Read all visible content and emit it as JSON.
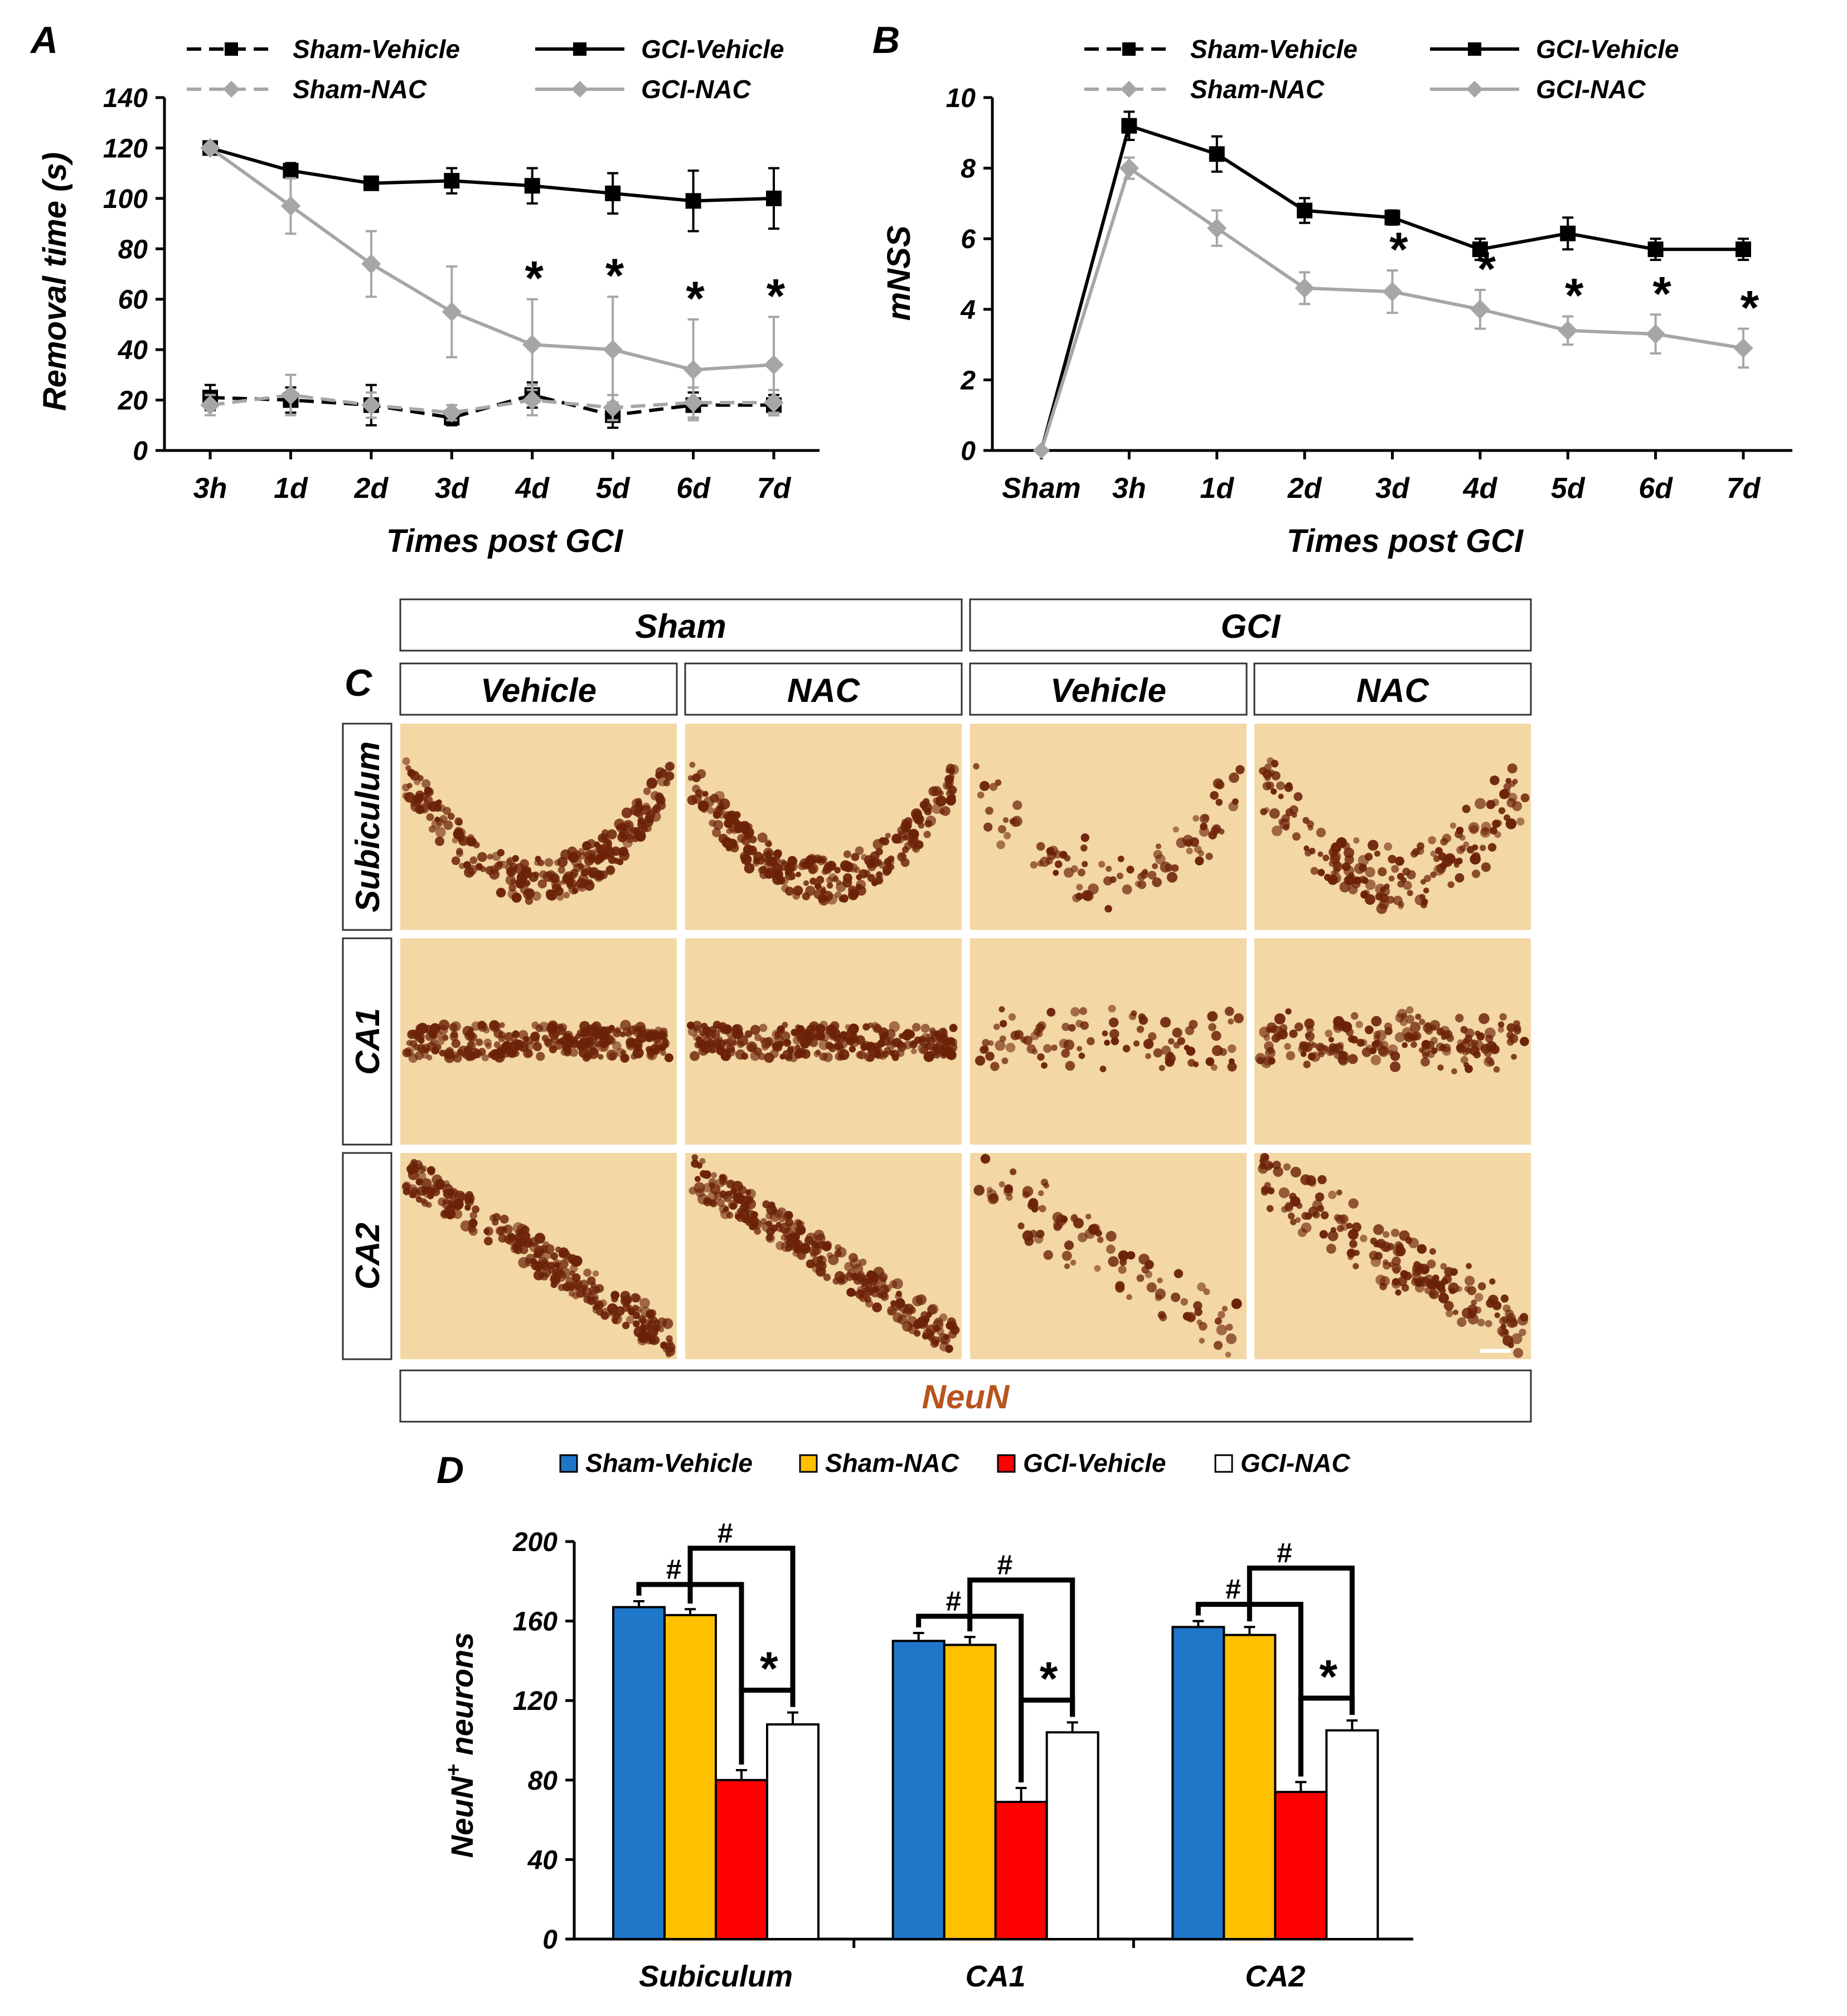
{
  "panel_labels": {
    "a": "A",
    "b": "B",
    "c": "C",
    "d": "D"
  },
  "chart_data": [
    {
      "panel": "A",
      "type": "line",
      "categories": [
        "3h",
        "1d",
        "2d",
        "3d",
        "4d",
        "5d",
        "6d",
        "7d"
      ],
      "ylabel": "Removal time (s)",
      "xlabel": "Times post GCI",
      "ylim": [
        0,
        140
      ],
      "yticks": [
        0,
        20,
        40,
        60,
        80,
        100,
        120,
        140
      ],
      "legend": "top",
      "series": [
        {
          "name": "Sham-Vehicle",
          "color": "#000000",
          "dashed": true,
          "marker": "square",
          "values": [
            21,
            20,
            18,
            13,
            22,
            14,
            18,
            18
          ],
          "errors": [
            5,
            5,
            8,
            3,
            5,
            5,
            5,
            4
          ]
        },
        {
          "name": "Sham-NAC",
          "color": "#a6a6a6",
          "dashed": true,
          "marker": "diamond",
          "values": [
            18,
            22,
            18,
            15,
            20,
            17,
            19,
            19
          ],
          "errors": [
            4,
            8,
            5,
            3,
            6,
            5,
            6,
            5
          ]
        },
        {
          "name": "GCI-Vehicle",
          "color": "#000000",
          "dashed": false,
          "marker": "square",
          "values": [
            120,
            111,
            106,
            107,
            105,
            102,
            99,
            100
          ],
          "errors": [
            0,
            3,
            2,
            5,
            7,
            8,
            12,
            12
          ]
        },
        {
          "name": "GCI-NAC",
          "color": "#a6a6a6",
          "dashed": false,
          "marker": "diamond",
          "values": [
            120,
            97,
            74,
            55,
            42,
            40,
            32,
            34
          ],
          "errors": [
            0,
            11,
            13,
            18,
            18,
            21,
            20,
            19
          ]
        }
      ],
      "significance": [
        {
          "category": "4d",
          "label": "*"
        },
        {
          "category": "5d",
          "label": "*"
        },
        {
          "category": "6d",
          "label": "*"
        },
        {
          "category": "7d",
          "label": "*"
        }
      ]
    },
    {
      "panel": "B",
      "type": "line",
      "categories": [
        "Sham",
        "3h",
        "1d",
        "2d",
        "3d",
        "4d",
        "5d",
        "6d",
        "7d"
      ],
      "ylabel": "mNSS",
      "xlabel": "Times post GCI",
      "ylim": [
        0,
        10
      ],
      "yticks": [
        0,
        2,
        4,
        6,
        8,
        10
      ],
      "legend": "top",
      "legend_entries": [
        {
          "name": "Sham-Vehicle",
          "color": "#000000",
          "dashed": true,
          "marker": "square"
        },
        {
          "name": "GCI-Vehicle",
          "color": "#000000",
          "dashed": false,
          "marker": "square"
        },
        {
          "name": "Sham-NAC",
          "color": "#a6a6a6",
          "dashed": true,
          "marker": "diamond"
        },
        {
          "name": "GCI-NAC",
          "color": "#a6a6a6",
          "dashed": false,
          "marker": "diamond"
        }
      ],
      "series": [
        {
          "name": "GCI-Vehicle",
          "color": "#000000",
          "dashed": false,
          "marker": "square",
          "values": [
            0,
            9.2,
            8.4,
            6.8,
            6.6,
            5.7,
            6.15,
            5.7,
            5.7
          ],
          "errors": [
            0,
            0.4,
            0.5,
            0.35,
            0.2,
            0.3,
            0.45,
            0.3,
            0.3
          ]
        },
        {
          "name": "GCI-NAC",
          "color": "#a6a6a6",
          "dashed": false,
          "marker": "diamond",
          "values": [
            0,
            8.0,
            6.3,
            4.6,
            4.5,
            4.0,
            3.4,
            3.3,
            2.9
          ],
          "errors": [
            0,
            0.3,
            0.5,
            0.45,
            0.6,
            0.55,
            0.4,
            0.55,
            0.55
          ]
        }
      ],
      "significance": [
        {
          "category": "3d",
          "label": "*"
        },
        {
          "category": "4d",
          "label": "*"
        },
        {
          "category": "5d",
          "label": "*"
        },
        {
          "category": "6d",
          "label": "*"
        },
        {
          "category": "7d",
          "label": "*"
        }
      ]
    },
    {
      "panel": "D",
      "type": "bar",
      "categories": [
        "Subiculum",
        "CA1",
        "CA2"
      ],
      "ylabel": "NeuN",
      "ylabel_sup": "+",
      "ylabel_rest": " neurons",
      "ylim": [
        0,
        200
      ],
      "yticks": [
        0,
        40,
        80,
        120,
        160,
        200
      ],
      "legend": "top",
      "series": [
        {
          "name": "Sham-Vehicle",
          "color": "#1f77c9",
          "values": [
            167,
            150,
            157
          ],
          "errors": [
            3,
            4,
            3
          ]
        },
        {
          "name": "Sham-NAC",
          "color": "#ffc000",
          "values": [
            163,
            148,
            153
          ],
          "errors": [
            3,
            4,
            4
          ]
        },
        {
          "name": "GCI-Vehicle",
          "color": "#ff0000",
          "values": [
            80,
            69,
            74
          ],
          "errors": [
            5,
            7,
            5
          ]
        },
        {
          "name": "GCI-NAC",
          "color": "#ffffff",
          "values": [
            108,
            104,
            105
          ],
          "errors": [
            6,
            5,
            5
          ]
        }
      ],
      "significance": {
        "hash": "#",
        "star": "*"
      }
    }
  ],
  "panel_c": {
    "group_headers": [
      "Sham",
      "GCI"
    ],
    "column_headers": [
      "Vehicle",
      "NAC",
      "Vehicle",
      "NAC"
    ],
    "row_labels": [
      "Subiculum",
      "CA1",
      "CA2"
    ],
    "stain_label": "NeuN",
    "stain_color": "#b8541e",
    "background_color": "#f3d7a4",
    "cell_color": "#6b2208"
  }
}
